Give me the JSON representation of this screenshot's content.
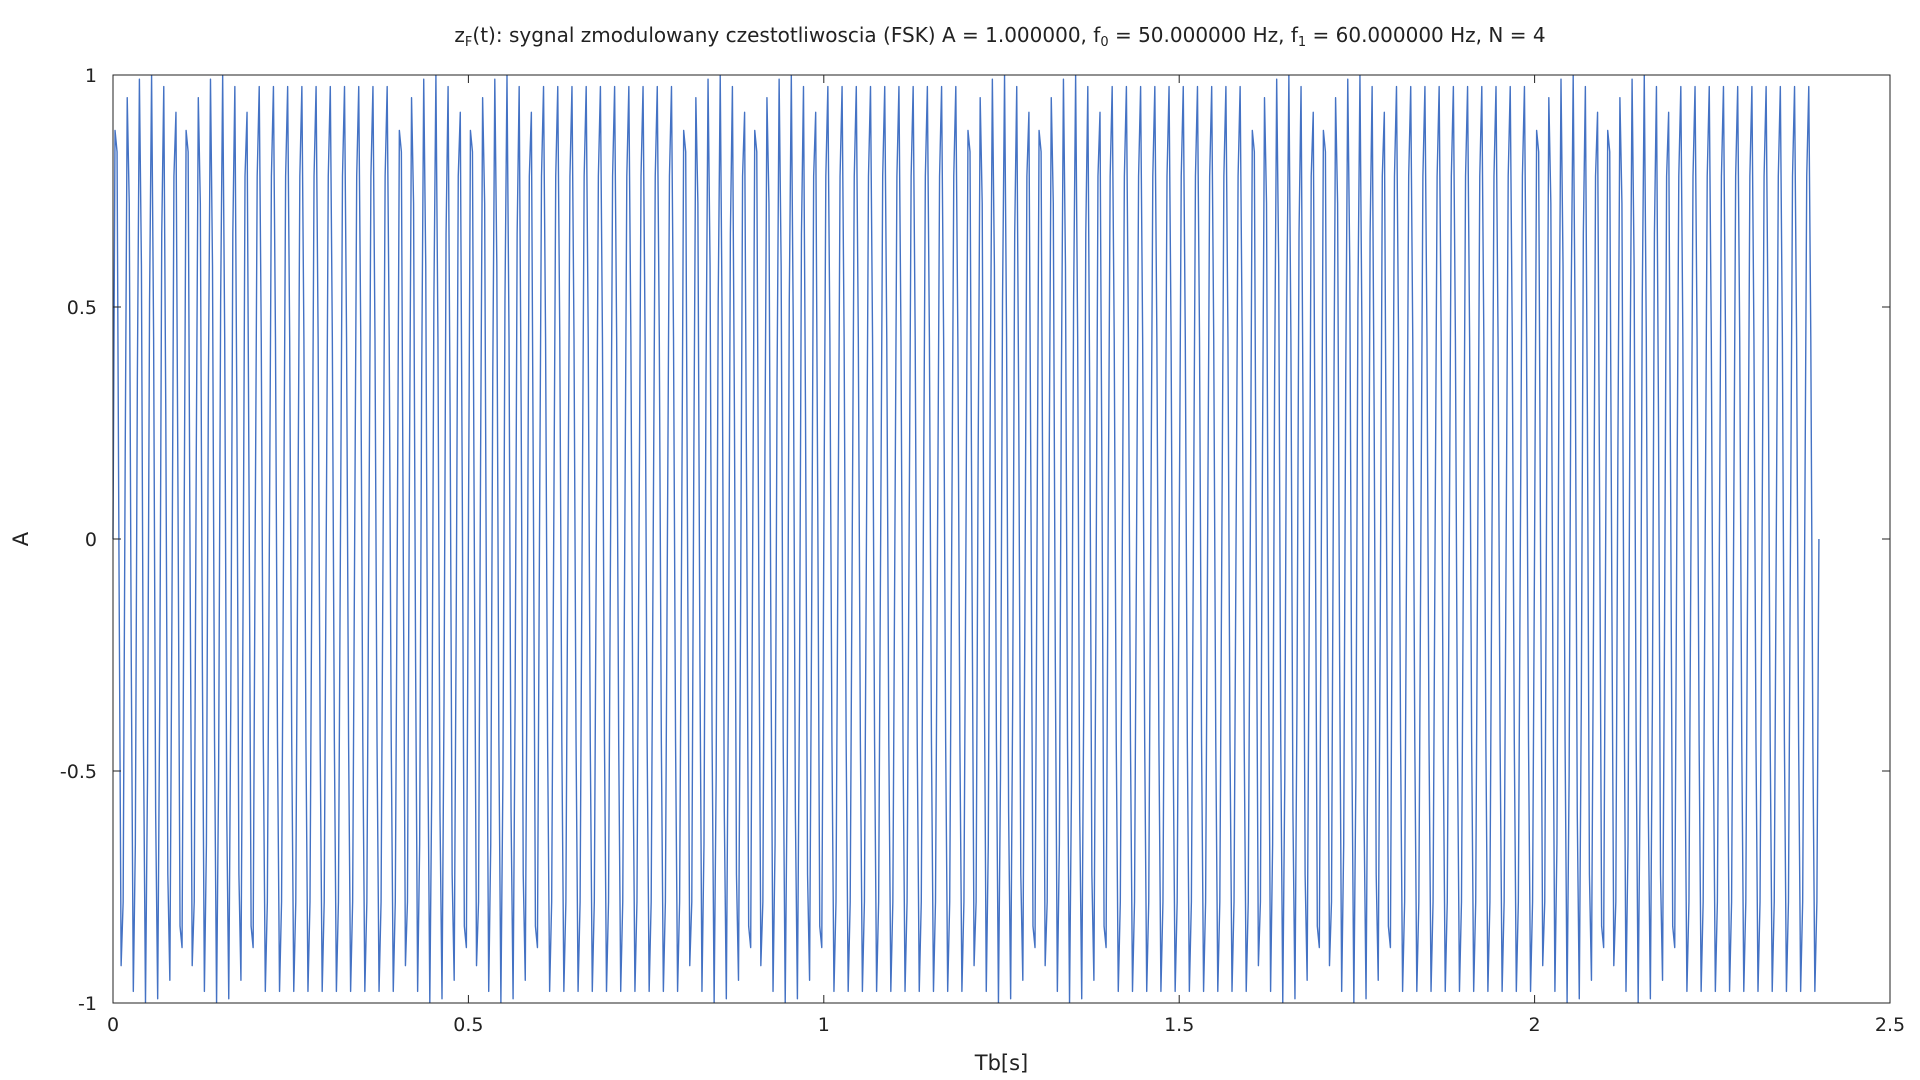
{
  "chart_data": {
    "type": "line",
    "title": {
      "prefix": "z",
      "prefix_sub": "F",
      "body": "(t): sygnal zmodulowany czestotliwoscia (FSK) A = 1.000000, f",
      "f0_sub": "0",
      "mid": " = 50.000000 Hz, f",
      "f1_sub": "1",
      "end": " = 60.000000 Hz, N = 4"
    },
    "xlabel": "Tb[s]",
    "ylabel": "A",
    "xlim": [
      0,
      2.5
    ],
    "ylim": [
      -1,
      1
    ],
    "xticks": [
      0,
      0.5,
      1,
      1.5,
      2,
      2.5
    ],
    "xtick_labels": [
      "0",
      "0.5",
      "1",
      "1.5",
      "2",
      "2.5"
    ],
    "yticks": [
      -1,
      -0.5,
      0,
      0.5,
      1
    ],
    "ytick_labels": [
      "-1",
      "-0.5",
      "0",
      "0.5",
      "1"
    ],
    "grid": false,
    "series": [
      {
        "color": "#4472c4",
        "signal": {
          "function": "sin",
          "amplitude": 1.0,
          "f0_hz": 50,
          "f1_hz": 60,
          "t_start": 0,
          "t_end": 2.4,
          "sample_rate_hz": 350,
          "bit_frequencies": [
            60,
            50,
            60,
            50,
            60,
            50,
            60,
            50,
            60,
            50,
            60,
            50
          ]
        }
      }
    ]
  }
}
